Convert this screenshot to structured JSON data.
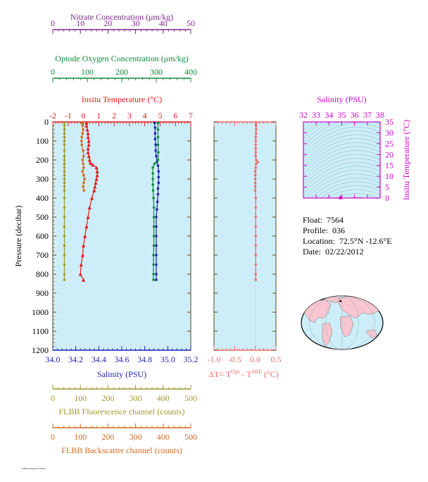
{
  "colors": {
    "nitrate": "#7b2a8c",
    "oxygen": "#11883a",
    "temperature": "#e41a1c",
    "salinity": "#1f22b0",
    "fluor": "#a09a2a",
    "backscatter": "#d2691e",
    "deltaT": "#f06c6c",
    "plot_bg": "#cdeef8",
    "frame": "#5a4a1a",
    "ts_axis": "#cc00cc"
  },
  "footer_stamp": "F5864 2012/02/22 12:00:37",
  "chart_data": [
    {
      "id": "profile",
      "type": "scatter",
      "ylabel": "Pressure (decibar)",
      "ylim": [
        1200,
        0
      ],
      "yticks": [
        0,
        100,
        200,
        300,
        400,
        500,
        600,
        700,
        800,
        900,
        1000,
        1100,
        1200
      ],
      "grid": false,
      "axes": {
        "nitrate": {
          "label": "Nitrate Concentration (μm/kg)",
          "lim": [
            0,
            50
          ],
          "ticks": [
            0,
            10,
            20,
            30,
            40,
            50
          ]
        },
        "oxygen": {
          "label": "Optode Oxygen Concentration (μm/kg)",
          "lim": [
            0,
            400
          ],
          "ticks": [
            0,
            100,
            200,
            300,
            400
          ]
        },
        "temperature": {
          "label": "Insitu Temperature (°C)",
          "lim": [
            -2,
            7
          ],
          "ticks": [
            -2,
            -1,
            0,
            1,
            2,
            3,
            4,
            5,
            6,
            7
          ]
        },
        "salinity": {
          "label": "Salinity (PSU)",
          "lim": [
            34.0,
            35.2
          ],
          "ticks": [
            "34.0",
            "34.2",
            "34.4",
            "34.6",
            "34.8",
            "35.0",
            "35.2"
          ]
        },
        "fluor": {
          "label": "FLBB Fluorescence channel (counts)",
          "lim": [
            0,
            500
          ],
          "ticks": [
            0,
            100,
            200,
            300,
            400,
            500
          ]
        },
        "backscatter": {
          "label": "FLBB Backscatter channel (counts)",
          "lim": [
            0,
            500
          ],
          "ticks": [
            0,
            100,
            200,
            300,
            400,
            500
          ]
        }
      },
      "series": [
        {
          "name": "Insitu Temperature",
          "axis": "temperature",
          "marker": "triangle",
          "points": [
            [
              0.2,
              5
            ],
            [
              0.2,
              20
            ],
            [
              0.25,
              40
            ],
            [
              0.3,
              60
            ],
            [
              0.3,
              80
            ],
            [
              0.35,
              100
            ],
            [
              0.35,
              120
            ],
            [
              0.3,
              140
            ],
            [
              0.3,
              160
            ],
            [
              0.35,
              180
            ],
            [
              0.4,
              200
            ],
            [
              0.45,
              215
            ],
            [
              0.6,
              225
            ],
            [
              0.85,
              240
            ],
            [
              0.9,
              260
            ],
            [
              0.9,
              280
            ],
            [
              0.85,
              300
            ],
            [
              0.8,
              320
            ],
            [
              0.75,
              340
            ],
            [
              0.7,
              360
            ],
            [
              0.55,
              400
            ],
            [
              0.4,
              450
            ],
            [
              0.3,
              500
            ],
            [
              0.2,
              550
            ],
            [
              0.1,
              600
            ],
            [
              0.0,
              650
            ],
            [
              -0.05,
              700
            ],
            [
              -0.15,
              750
            ],
            [
              -0.2,
              800
            ],
            [
              0.0,
              830
            ]
          ]
        },
        {
          "name": "Salinity",
          "axis": "salinity",
          "marker": "circle",
          "points": [
            [
              34.885,
              5
            ],
            [
              34.89,
              30
            ],
            [
              34.89,
              60
            ],
            [
              34.89,
              90
            ],
            [
              34.895,
              120
            ],
            [
              34.895,
              150
            ],
            [
              34.9,
              180
            ],
            [
              34.905,
              210
            ],
            [
              34.915,
              230
            ],
            [
              34.92,
              260
            ],
            [
              34.92,
              290
            ],
            [
              34.92,
              320
            ],
            [
              34.915,
              350
            ],
            [
              34.915,
              380
            ],
            [
              34.91,
              420
            ],
            [
              34.905,
              460
            ],
            [
              34.9,
              500
            ],
            [
              34.9,
              550
            ],
            [
              34.9,
              600
            ],
            [
              34.9,
              650
            ],
            [
              34.9,
              700
            ],
            [
              34.9,
              750
            ],
            [
              34.9,
              800
            ],
            [
              34.9,
              830
            ]
          ]
        },
        {
          "name": "Optode Oxygen Concentration",
          "axis": "oxygen",
          "marker": "circle",
          "points": [
            [
              305,
              5
            ],
            [
              305,
              40
            ],
            [
              305,
              80
            ],
            [
              305,
              120
            ],
            [
              306,
              160
            ],
            [
              305,
              200
            ],
            [
              295,
              220
            ],
            [
              290,
              240
            ],
            [
              290,
              270
            ],
            [
              290,
              300
            ],
            [
              290,
              330
            ],
            [
              291,
              360
            ],
            [
              292,
              400
            ],
            [
              293,
              450
            ],
            [
              293,
              500
            ],
            [
              293,
              550
            ],
            [
              293,
              600
            ],
            [
              293,
              650
            ],
            [
              292,
              700
            ],
            [
              292,
              750
            ],
            [
              292,
              800
            ],
            [
              292,
              830
            ]
          ]
        },
        {
          "name": "FLBB Fluorescence channel",
          "axis": "fluor",
          "marker": "circle",
          "points": [
            [
              42,
              5
            ],
            [
              42,
              20
            ],
            [
              42,
              40
            ],
            [
              42,
              60
            ],
            [
              42,
              80
            ],
            [
              42,
              100
            ],
            [
              42,
              120
            ],
            [
              42,
              150
            ],
            [
              42,
              180
            ],
            [
              42,
              200
            ],
            [
              42,
              220
            ],
            [
              42,
              240
            ],
            [
              42,
              260
            ],
            [
              42,
              280
            ],
            [
              42,
              300
            ],
            [
              42,
              320
            ],
            [
              42,
              340
            ],
            [
              42,
              360
            ],
            [
              42,
              400
            ],
            [
              42,
              450
            ],
            [
              42,
              500
            ],
            [
              42,
              550
            ],
            [
              42,
              600
            ],
            [
              42,
              650
            ],
            [
              42,
              700
            ],
            [
              42,
              750
            ],
            [
              42,
              800
            ],
            [
              42,
              830
            ]
          ]
        },
        {
          "name": "FLBB Backscatter channel",
          "axis": "backscatter",
          "marker": "circle",
          "points": [
            [
              105,
              5
            ],
            [
              108,
              20
            ],
            [
              110,
              40
            ],
            [
              108,
              60
            ],
            [
              105,
              80
            ],
            [
              104,
              100
            ],
            [
              105,
              120
            ],
            [
              110,
              150
            ],
            [
              112,
              180
            ],
            [
              108,
              200
            ],
            [
              110,
              220
            ],
            [
              112,
              240
            ],
            [
              108,
              260
            ],
            [
              112,
              280
            ],
            [
              115,
              300
            ],
            [
              112,
              320
            ],
            [
              110,
              340
            ],
            [
              113,
              360
            ]
          ]
        }
      ]
    },
    {
      "id": "delta_t",
      "type": "scatter",
      "xlabel": "ΔT= T^Opt - T^SBE (°C)",
      "xlabel_parts": {
        "pre": "ΔT= T",
        "sup1": "Opt",
        "mid": " - T",
        "sup2": "SBE",
        "post": " (°C)"
      },
      "xlim": [
        -1.0,
        0.5
      ],
      "xticks": [
        "-1.0",
        "-0.5",
        "0.0",
        "0.5"
      ],
      "ylim": [
        1200,
        0
      ],
      "series": [
        {
          "name": "ΔT",
          "marker": "circle",
          "points": [
            [
              0.02,
              5
            ],
            [
              0.02,
              20
            ],
            [
              0.02,
              40
            ],
            [
              0.02,
              60
            ],
            [
              0.01,
              80
            ],
            [
              0.01,
              100
            ],
            [
              0.01,
              120
            ],
            [
              0.01,
              140
            ],
            [
              0.01,
              160
            ],
            [
              0.01,
              180
            ],
            [
              0.02,
              200
            ],
            [
              0.06,
              210
            ],
            [
              0.02,
              220
            ],
            [
              0.01,
              240
            ],
            [
              0.0,
              260
            ],
            [
              0.0,
              280
            ],
            [
              0.0,
              300
            ],
            [
              0.0,
              320
            ],
            [
              0.0,
              340
            ],
            [
              0.0,
              360
            ],
            [
              0.01,
              400
            ],
            [
              0.01,
              450
            ],
            [
              0.01,
              500
            ],
            [
              0.01,
              550
            ],
            [
              0.01,
              600
            ],
            [
              0.01,
              650
            ],
            [
              0.01,
              700
            ],
            [
              0.01,
              750
            ],
            [
              0.01,
              800
            ],
            [
              0.01,
              830
            ]
          ]
        }
      ]
    },
    {
      "id": "ts_diagram",
      "type": "scatter",
      "xlabel": "Salinity (PSU)",
      "xlim": [
        32,
        38
      ],
      "xticks": [
        32,
        33,
        34,
        35,
        36,
        37,
        38
      ],
      "ylabel": "Insitu Temperature (°C)",
      "ylim": [
        0,
        35
      ],
      "yticks": [
        0,
        5,
        10,
        15,
        20,
        25,
        30,
        35
      ],
      "contours": "density isopleths",
      "series": [
        {
          "name": "T-S",
          "marker": "triangle",
          "points": [
            [
              34.9,
              0.4
            ]
          ]
        }
      ]
    }
  ],
  "info": {
    "float_label": "Float:",
    "float_value": "7564",
    "profile_label": "Profile:",
    "profile_value": "036",
    "location_label": "Location:",
    "location_value": "72.5°N  -12.6°E",
    "date_label": "Date:",
    "date_value": "02/22/2012"
  },
  "map": {
    "marker": {
      "lon": -12.6,
      "lat": 72.5
    }
  }
}
